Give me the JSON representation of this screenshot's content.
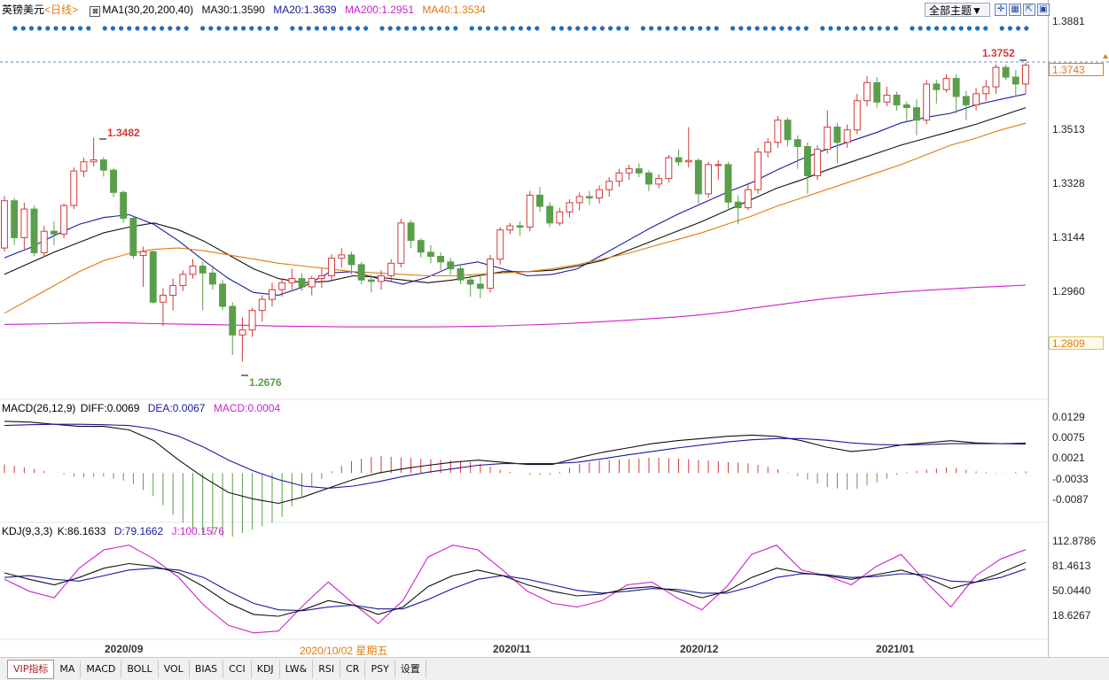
{
  "header": {
    "symbol": "英镑美元",
    "period": "<日线>",
    "ma_title": "MA1(30,20,200,40)",
    "ma_values": [
      {
        "text": "MA30:1.3590",
        "color": "#111111"
      },
      {
        "text": "MA20:1.3639",
        "color": "#1a1aa0"
      },
      {
        "text": "MA200:1.2951",
        "color": "#cc22cc"
      },
      {
        "text": "MA40:1.3534",
        "color": "#e07a10"
      }
    ],
    "theme_button": "全部主题▼"
  },
  "axis": {
    "price_ticks": [
      "1.3881",
      "1.3513",
      "1.3328",
      "1.3144",
      "1.2960"
    ],
    "current_price": "1.3743",
    "low_box_price": "1.2809",
    "macd_ticks": [
      "0.0129",
      "0.0075",
      "0.0021",
      "-0.0033",
      "-0.0087"
    ],
    "kdj_ticks": [
      "112.8786",
      "81.4613",
      "50.0440",
      "18.6267"
    ],
    "dates": [
      "2020/09",
      "2020/11",
      "2020/12",
      "2021/01"
    ],
    "cursor_date": "2020/10/02 星期五"
  },
  "annotations": {
    "high_label": "1.3482",
    "low_label": "1.2676",
    "last_high_label": "1.3752"
  },
  "macd": {
    "title": "MACD(26,12,9)",
    "diff": "DIFF:0.0069",
    "dea": "DEA:0.0067",
    "macd": "MACD:0.0004"
  },
  "kdj": {
    "title": "KDJ(9,3,3)",
    "k": "K:86.1633",
    "d": "D:79.1662",
    "j": "J:100.1576"
  },
  "tabs": [
    "VIP指标",
    "MA",
    "MACD",
    "BOLL",
    "VOL",
    "BIAS",
    "CCI",
    "KDJ",
    "LW&",
    "RSI",
    "CR",
    "PSY",
    "设置"
  ],
  "colors": {
    "up": "#d23a3a",
    "down": "#5b9e4a",
    "ma30": "#111111",
    "ma20": "#1a1aa0",
    "ma200": "#cc22cc",
    "ma40": "#e07a10",
    "dots": "#1d6fb8"
  },
  "chart_data": {
    "type": "candlestick",
    "title": "英镑美元 日线",
    "ylim": [
      1.255,
      1.392
    ],
    "x_range_days": 105,
    "candles": [
      [
        1.3085,
        1.3272,
        1.3072,
        1.3255
      ],
      [
        1.3255,
        1.3265,
        1.3095,
        1.3122
      ],
      [
        1.3122,
        1.3248,
        1.3081,
        1.3225
      ],
      [
        1.3225,
        1.3238,
        1.3055,
        1.3068
      ],
      [
        1.3068,
        1.3165,
        1.3052,
        1.3145
      ],
      [
        1.3145,
        1.318,
        1.3095,
        1.3135
      ],
      [
        1.3135,
        1.3245,
        1.312,
        1.3238
      ],
      [
        1.3238,
        1.3375,
        1.3225,
        1.3362
      ],
      [
        1.3362,
        1.341,
        1.334,
        1.3395
      ],
      [
        1.3395,
        1.3482,
        1.3378,
        1.3402
      ],
      [
        1.3402,
        1.3412,
        1.3342,
        1.3365
      ],
      [
        1.3365,
        1.3372,
        1.3268,
        1.3285
      ],
      [
        1.3285,
        1.3292,
        1.3175,
        1.3192
      ],
      [
        1.3192,
        1.3198,
        1.3045,
        1.3058
      ],
      [
        1.3058,
        1.309,
        1.2945,
        1.3072
      ],
      [
        1.3072,
        1.3075,
        1.2885,
        1.289
      ],
      [
        1.289,
        1.294,
        1.2805,
        1.2915
      ],
      [
        1.2915,
        1.2975,
        1.286,
        1.295
      ],
      [
        1.295,
        1.3005,
        1.293,
        1.299
      ],
      [
        1.299,
        1.3045,
        1.2975,
        1.302
      ],
      [
        1.302,
        1.3035,
        1.286,
        1.2995
      ],
      [
        1.2995,
        1.3022,
        1.2935,
        1.2955
      ],
      [
        1.2955,
        1.297,
        1.2862,
        1.2875
      ],
      [
        1.2875,
        1.289,
        1.27,
        1.2772
      ],
      [
        1.2772,
        1.2835,
        1.2676,
        1.279
      ],
      [
        1.279,
        1.287,
        1.2765,
        1.286
      ],
      [
        1.286,
        1.2915,
        1.282,
        1.29
      ],
      [
        1.29,
        1.296,
        1.2875,
        1.2935
      ],
      [
        1.2935,
        1.2972,
        1.291,
        1.296
      ],
      [
        1.296,
        1.301,
        1.2935,
        1.2975
      ],
      [
        1.2975,
        1.2992,
        1.293,
        1.2945
      ],
      [
        1.2945,
        1.2985,
        1.2915,
        1.2975
      ],
      [
        1.2975,
        1.301,
        1.2942,
        1.2985
      ],
      [
        1.2985,
        1.3062,
        1.2965,
        1.3048
      ],
      [
        1.3048,
        1.3085,
        1.3015,
        1.306
      ],
      [
        1.306,
        1.3072,
        1.299,
        1.3025
      ],
      [
        1.3025,
        1.3035,
        1.2955,
        1.297
      ],
      [
        1.297,
        1.299,
        1.2925,
        1.2965
      ],
      [
        1.2965,
        1.3005,
        1.2935,
        1.2985
      ],
      [
        1.2985,
        1.3045,
        1.2965,
        1.303
      ],
      [
        1.303,
        1.319,
        1.3015,
        1.3175
      ],
      [
        1.3175,
        1.3185,
        1.3085,
        1.3112
      ],
      [
        1.3112,
        1.312,
        1.305,
        1.307
      ],
      [
        1.307,
        1.3095,
        1.303,
        1.3055
      ],
      [
        1.3055,
        1.307,
        1.3005,
        1.3035
      ],
      [
        1.3035,
        1.305,
        1.299,
        1.301
      ],
      [
        1.301,
        1.302,
        1.2955,
        1.297
      ],
      [
        1.297,
        1.299,
        1.291,
        1.2955
      ],
      [
        1.2955,
        1.299,
        1.2905,
        1.294
      ],
      [
        1.294,
        1.306,
        1.2925,
        1.3045
      ],
      [
        1.3045,
        1.316,
        1.3025,
        1.315
      ],
      [
        1.315,
        1.3175,
        1.3135,
        1.3165
      ],
      [
        1.3165,
        1.318,
        1.313,
        1.316
      ],
      [
        1.316,
        1.329,
        1.3145,
        1.3275
      ],
      [
        1.3275,
        1.3305,
        1.3215,
        1.3235
      ],
      [
        1.3235,
        1.325,
        1.316,
        1.3175
      ],
      [
        1.3175,
        1.323,
        1.3165,
        1.3215
      ],
      [
        1.3215,
        1.326,
        1.3195,
        1.3248
      ],
      [
        1.3248,
        1.3285,
        1.322,
        1.327
      ],
      [
        1.327,
        1.329,
        1.324,
        1.3265
      ],
      [
        1.3265,
        1.331,
        1.3245,
        1.3295
      ],
      [
        1.3295,
        1.334,
        1.327,
        1.3325
      ],
      [
        1.3325,
        1.337,
        1.3305,
        1.3355
      ],
      [
        1.3355,
        1.3385,
        1.333,
        1.337
      ],
      [
        1.337,
        1.339,
        1.334,
        1.3355
      ],
      [
        1.3355,
        1.3365,
        1.329,
        1.3315
      ],
      [
        1.3315,
        1.335,
        1.33,
        1.3335
      ],
      [
        1.3335,
        1.342,
        1.332,
        1.341
      ],
      [
        1.341,
        1.344,
        1.338,
        1.3395
      ],
      [
        1.3395,
        1.352,
        1.3375,
        1.34
      ],
      [
        1.34,
        1.3408,
        1.3245,
        1.328
      ],
      [
        1.328,
        1.3395,
        1.3265,
        1.3385
      ],
      [
        1.3385,
        1.34,
        1.333,
        1.3385
      ],
      [
        1.3385,
        1.3395,
        1.322,
        1.325
      ],
      [
        1.325,
        1.3275,
        1.317,
        1.323
      ],
      [
        1.323,
        1.332,
        1.322,
        1.3295
      ],
      [
        1.3295,
        1.3445,
        1.328,
        1.343
      ],
      [
        1.343,
        1.348,
        1.341,
        1.3465
      ],
      [
        1.3465,
        1.356,
        1.3445,
        1.3545
      ],
      [
        1.3545,
        1.3555,
        1.345,
        1.3475
      ],
      [
        1.3475,
        1.349,
        1.337,
        1.345
      ],
      [
        1.345,
        1.3465,
        1.328,
        1.3345
      ],
      [
        1.3345,
        1.3455,
        1.333,
        1.344
      ],
      [
        1.344,
        1.358,
        1.3425,
        1.352
      ],
      [
        1.352,
        1.3535,
        1.339,
        1.3465
      ],
      [
        1.3465,
        1.353,
        1.3445,
        1.351
      ],
      [
        1.351,
        1.364,
        1.3495,
        1.3615
      ],
      [
        1.3615,
        1.3705,
        1.3595,
        1.368
      ],
      [
        1.368,
        1.37,
        1.359,
        1.361
      ],
      [
        1.361,
        1.3665,
        1.3595,
        1.3635
      ],
      [
        1.3635,
        1.3648,
        1.358,
        1.36
      ],
      [
        1.36,
        1.3612,
        1.354,
        1.359
      ],
      [
        1.359,
        1.362,
        1.349,
        1.3545
      ],
      [
        1.3545,
        1.369,
        1.353,
        1.3675
      ],
      [
        1.3675,
        1.369,
        1.3605,
        1.3655
      ],
      [
        1.3655,
        1.371,
        1.3645,
        1.3695
      ],
      [
        1.3695,
        1.371,
        1.357,
        1.363
      ],
      [
        1.363,
        1.365,
        1.3545,
        1.36
      ],
      [
        1.36,
        1.366,
        1.358,
        1.364
      ],
      [
        1.364,
        1.369,
        1.3615,
        1.3665
      ],
      [
        1.3665,
        1.3745,
        1.364,
        1.3735
      ],
      [
        1.3735,
        1.3745,
        1.369,
        1.37
      ],
      [
        1.37,
        1.3725,
        1.363,
        1.3675
      ],
      [
        1.3675,
        1.3752,
        1.364,
        1.3743
      ]
    ],
    "series": [
      {
        "name": "MA20",
        "values": [
          1.305,
          1.3085,
          1.313,
          1.317,
          1.3195,
          1.3205,
          1.317,
          1.311,
          1.304,
          1.2975,
          1.2925,
          1.2915,
          1.2945,
          1.2995,
          1.3,
          1.2975,
          1.2955,
          1.298,
          1.302,
          1.3035,
          1.301,
          1.2985,
          1.299,
          1.301,
          1.306,
          1.311,
          1.316,
          1.3205,
          1.3245,
          1.3285,
          1.332,
          1.3365,
          1.3405,
          1.344,
          1.347,
          1.35,
          1.3535,
          1.3555,
          1.357,
          1.36,
          1.362,
          1.3639
        ]
      },
      {
        "name": "MA30",
        "values": [
          1.299,
          1.303,
          1.307,
          1.3105,
          1.314,
          1.316,
          1.3175,
          1.315,
          1.311,
          1.306,
          1.301,
          1.2975,
          1.296,
          1.2965,
          1.2985,
          1.298,
          1.297,
          1.296,
          1.297,
          1.2985,
          1.3,
          1.3,
          1.3005,
          1.302,
          1.304,
          1.3075,
          1.311,
          1.3145,
          1.318,
          1.322,
          1.326,
          1.33,
          1.333,
          1.3365,
          1.3395,
          1.3425,
          1.3455,
          1.348,
          1.3505,
          1.353,
          1.356,
          1.359
        ]
      },
      {
        "name": "MA40",
        "values": [
          1.285,
          1.29,
          1.295,
          1.3,
          1.304,
          1.3065,
          1.308,
          1.3085,
          1.3075,
          1.306,
          1.3045,
          1.303,
          1.302,
          1.301,
          1.3,
          1.2995,
          1.299,
          1.2985,
          1.2985,
          1.299,
          1.2995,
          1.3,
          1.301,
          1.3025,
          1.3045,
          1.3065,
          1.309,
          1.3115,
          1.314,
          1.317,
          1.32,
          1.3235,
          1.3265,
          1.3295,
          1.3325,
          1.3355,
          1.3385,
          1.342,
          1.3455,
          1.348,
          1.351,
          1.3534
        ]
      },
      {
        "name": "MA200",
        "values": [
          1.281,
          1.2811,
          1.2813,
          1.2815,
          1.2816,
          1.2815,
          1.2813,
          1.2811,
          1.281,
          1.2808,
          1.2806,
          1.2804,
          1.2803,
          1.2802,
          1.2801,
          1.2801,
          1.2801,
          1.2801,
          1.2802,
          1.2803,
          1.2805,
          1.2808,
          1.2811,
          1.2815,
          1.282,
          1.2825,
          1.2831,
          1.2837,
          1.2845,
          1.2855,
          1.2868,
          1.288,
          1.2892,
          1.2903,
          1.2912,
          1.292,
          1.2927,
          1.2933,
          1.2938,
          1.2943,
          1.2947,
          1.2951
        ]
      }
    ],
    "macd_ylim": [
      -0.011,
      0.014
    ],
    "macd_diff": [
      0.012,
      0.0118,
      0.0113,
      0.0108,
      0.0108,
      0.01,
      0.0075,
      0.003,
      -0.001,
      -0.0045,
      -0.006,
      -0.007,
      -0.0055,
      -0.0035,
      -0.0015,
      0.0,
      0.001,
      0.0018,
      0.0025,
      0.003,
      0.0025,
      0.002,
      0.002,
      0.0035,
      0.0048,
      0.0058,
      0.0068,
      0.0075,
      0.008,
      0.0085,
      0.0088,
      0.0085,
      0.0075,
      0.006,
      0.005,
      0.0055,
      0.0065,
      0.007,
      0.0075,
      0.007,
      0.0068,
      0.0069
    ],
    "macd_dea": [
      0.011,
      0.0112,
      0.0113,
      0.0113,
      0.0112,
      0.011,
      0.0102,
      0.0085,
      0.006,
      0.003,
      0.0005,
      -0.0015,
      -0.003,
      -0.0035,
      -0.003,
      -0.002,
      -0.0008,
      0.0002,
      0.001,
      0.0018,
      0.0022,
      0.0022,
      0.0022,
      0.0025,
      0.0033,
      0.0042,
      0.005,
      0.0058,
      0.0065,
      0.0072,
      0.0077,
      0.008,
      0.008,
      0.0076,
      0.007,
      0.0066,
      0.0065,
      0.0066,
      0.0068,
      0.0068,
      0.0068,
      0.0067
    ],
    "kdj_ylim": [
      5,
      120
    ],
    "kdj_k": [
      75,
      68,
      62,
      70,
      80,
      85,
      82,
      75,
      60,
      42,
      30,
      28,
      35,
      45,
      40,
      30,
      38,
      60,
      72,
      78,
      72,
      62,
      55,
      50,
      52,
      58,
      60,
      55,
      48,
      55,
      70,
      80,
      75,
      72,
      68,
      73,
      78,
      70,
      58,
      65,
      75,
      86.1633
    ],
    "kdj_d": [
      70,
      72,
      68,
      66,
      72,
      78,
      80,
      78,
      70,
      55,
      42,
      35,
      34,
      38,
      40,
      36,
      36,
      46,
      58,
      68,
      72,
      68,
      62,
      56,
      53,
      55,
      58,
      57,
      53,
      53,
      60,
      70,
      74,
      73,
      70,
      71,
      74,
      73,
      66,
      65,
      70,
      79.1662
    ],
    "kdj_j": [
      68,
      55,
      48,
      80,
      100,
      105,
      90,
      70,
      40,
      18,
      10,
      12,
      40,
      65,
      42,
      20,
      45,
      92,
      105,
      100,
      78,
      55,
      42,
      38,
      45,
      62,
      65,
      48,
      35,
      60,
      95,
      105,
      78,
      72,
      62,
      82,
      95,
      65,
      38,
      72,
      90,
      100.1576
    ]
  }
}
